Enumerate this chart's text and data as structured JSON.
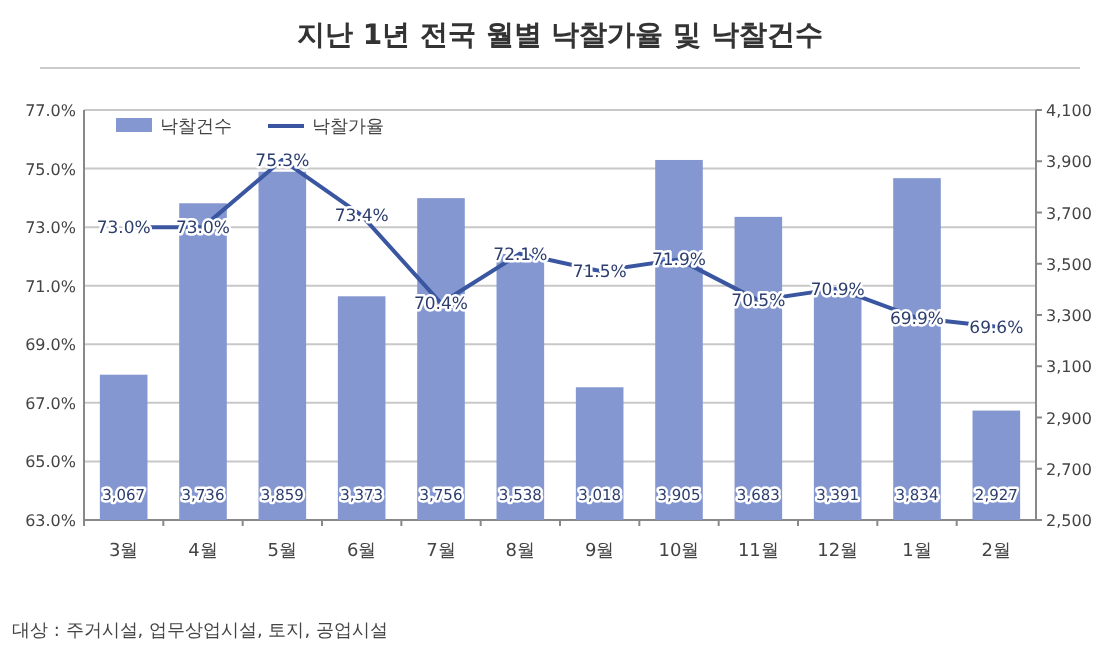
{
  "chart_data": {
    "type": "bar",
    "title": "지난 1년 전국 월별 낙찰가율 및 낙찰건수",
    "categories": [
      "3월",
      "4월",
      "5월",
      "6월",
      "7월",
      "8월",
      "9월",
      "10월",
      "11월",
      "12월",
      "1월",
      "2월"
    ],
    "series": [
      {
        "name": "낙찰건수",
        "axis": "y2",
        "color": "#8497d0",
        "values": [
          3067,
          3736,
          3859,
          3373,
          3756,
          3538,
          3018,
          3905,
          3683,
          3391,
          3834,
          2927
        ],
        "value_labels": [
          "3,067",
          "3,736",
          "3,859",
          "3,373",
          "3,756",
          "3,538",
          "3,018",
          "3,905",
          "3,683",
          "3,391",
          "3,834",
          "2,927"
        ]
      },
      {
        "name": "낙찰가율",
        "type": "line",
        "axis": "y",
        "color": "#3a56a0",
        "values": [
          73.0,
          73.0,
          75.3,
          73.4,
          70.4,
          72.1,
          71.5,
          71.9,
          70.5,
          70.9,
          69.9,
          69.6
        ],
        "value_labels": [
          "73.0%",
          "73.0%",
          "75.3%",
          "73.4%",
          "70.4%",
          "72.1%",
          "71.5%",
          "71.9%",
          "70.5%",
          "70.9%",
          "69.9%",
          "69.6%"
        ]
      }
    ],
    "ylim": [
      63,
      77
    ],
    "yticks": [
      {
        "value": 63,
        "label": "63.0%"
      },
      {
        "value": 65,
        "label": "65.0%"
      },
      {
        "value": 67,
        "label": "67.0%"
      },
      {
        "value": 69,
        "label": "69.0%"
      },
      {
        "value": 71,
        "label": "71.0%"
      },
      {
        "value": 73,
        "label": "73.0%"
      },
      {
        "value": 75,
        "label": "75.0%"
      },
      {
        "value": 77,
        "label": "77.0%"
      }
    ],
    "y2lim": [
      2500,
      4100
    ],
    "y2ticks": [
      {
        "value": 2500,
        "label": "2,500"
      },
      {
        "value": 2700,
        "label": "2,700"
      },
      {
        "value": 2900,
        "label": "2,900"
      },
      {
        "value": 3100,
        "label": "3,100"
      },
      {
        "value": 3300,
        "label": "3,300"
      },
      {
        "value": 3500,
        "label": "3,500"
      },
      {
        "value": 3700,
        "label": "3,700"
      },
      {
        "value": 3900,
        "label": "3,900"
      },
      {
        "value": 4100,
        "label": "4,100"
      }
    ],
    "grid": "y",
    "legend": "top left",
    "marker": "none",
    "annotations": [
      "대상 : 주거시설, 업무상업시설, 토지, 공업시설"
    ]
  }
}
